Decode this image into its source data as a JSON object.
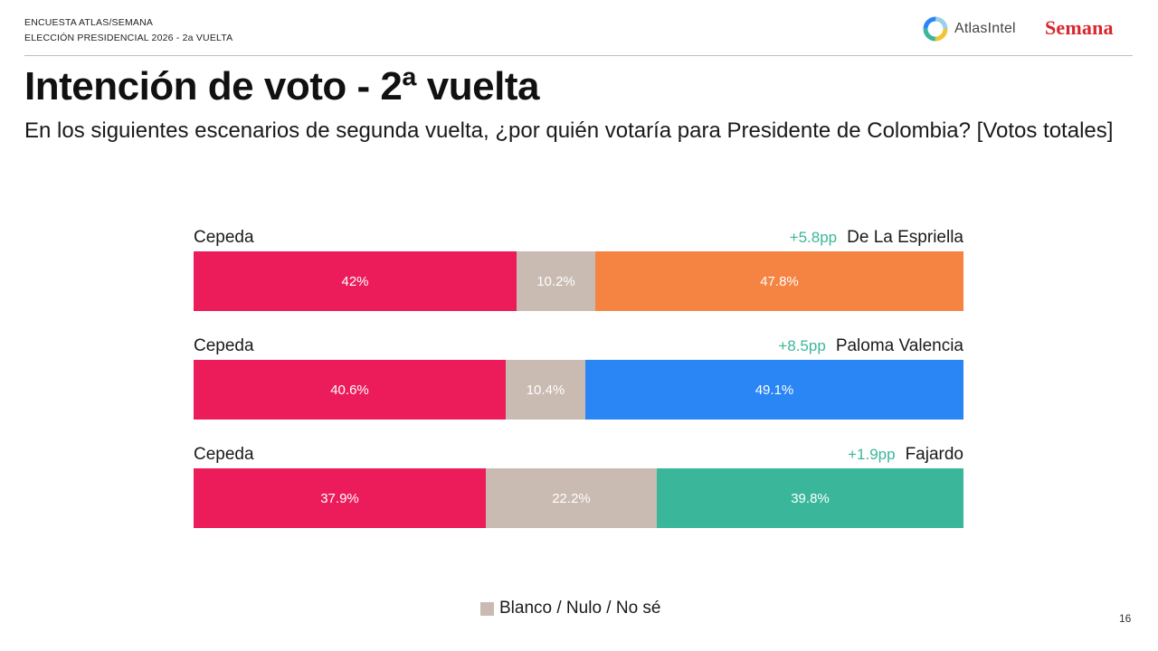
{
  "header": {
    "survey_line1": "ENCUESTA ATLAS/SEMANA",
    "survey_line2": "ELECCIÓN PRESIDENCIAL 2026 - 2a VUELTA",
    "atlas_logo_text": "AtlasIntel",
    "semana_logo_text": "Semana"
  },
  "title": "Intención de voto - 2ª vuelta",
  "subtitle": "En los siguientes escenarios de segunda vuelta, ¿por quién votaría para Presidente de Colombia? [Votos totales]",
  "page_number": "16",
  "colors": {
    "cepeda": "#ec1c5b",
    "blank": "#c9bbb2",
    "de_la_espriella": "#f58442",
    "paloma_valencia": "#2a86f5",
    "fajardo": "#3ab79a",
    "diff_text": "#3ab79a",
    "semana_red": "#d8262d"
  },
  "chart_data": {
    "type": "bar",
    "orientation": "horizontal",
    "stacked": true,
    "scale": "percent",
    "legend": {
      "placement": "bottom-center",
      "entries": [
        "Blanco / Nulo / No sé"
      ]
    },
    "rows": [
      {
        "left_name": "Cepeda",
        "right_name": "De La Espriella",
        "difference": "+5.8pp",
        "segments": [
          {
            "role": "left",
            "value": 42.0,
            "label": "42%",
            "color": "#ec1c5b"
          },
          {
            "role": "blank",
            "value": 10.2,
            "label": "10.2%",
            "color": "#c9bbb2"
          },
          {
            "role": "right",
            "value": 47.8,
            "label": "47.8%",
            "color": "#f58442"
          }
        ]
      },
      {
        "left_name": "Cepeda",
        "right_name": "Paloma Valencia",
        "difference": "+8.5pp",
        "segments": [
          {
            "role": "left",
            "value": 40.6,
            "label": "40.6%",
            "color": "#ec1c5b"
          },
          {
            "role": "blank",
            "value": 10.4,
            "label": "10.4%",
            "color": "#c9bbb2"
          },
          {
            "role": "right",
            "value": 49.1,
            "label": "49.1%",
            "color": "#2a86f5"
          }
        ]
      },
      {
        "left_name": "Cepeda",
        "right_name": "Fajardo",
        "difference": "+1.9pp",
        "segments": [
          {
            "role": "left",
            "value": 37.9,
            "label": "37.9%",
            "color": "#ec1c5b"
          },
          {
            "role": "blank",
            "value": 22.2,
            "label": "22.2%",
            "color": "#c9bbb2"
          },
          {
            "role": "right",
            "value": 39.8,
            "label": "39.8%",
            "color": "#3ab79a"
          }
        ]
      }
    ]
  }
}
